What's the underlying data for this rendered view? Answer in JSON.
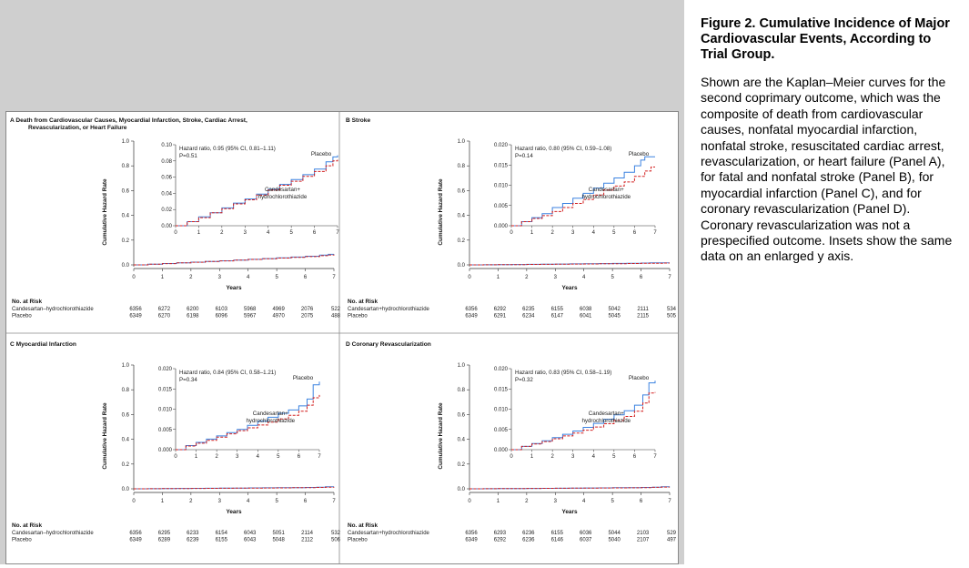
{
  "caption": {
    "title": "Figure 2. Cumulative Incidence of Major Cardiovascular Events, According to Trial Group.",
    "body": "Shown are the Kaplan–Meier curves for the second coprimary outcome, which was the composite of death from cardiovascular causes, nonfatal myocardial infarction, nonfatal stroke, resuscitated cardiac arrest, revascularization, or heart failure (Panel A), for fatal and nonfatal stroke (Panel B), for myocardial infarction (Panel C), and for coronary revascularization (Panel D). Coronary revascularization was not a prespecified outcome. Insets show the same data on an enlarged y axis."
  },
  "colors": {
    "placebo": "#3b82e0",
    "candesartan": "#d32020",
    "axis": "#333333",
    "frame": "#8a8a8a"
  },
  "shared": {
    "ylabel": "Cumulative Hazard Rate",
    "xlabel": "Years",
    "risk_header": "No. at Risk",
    "main_y_ticks": [
      "0.0",
      "0.2",
      "0.4",
      "0.6",
      "0.8",
      "1.0"
    ],
    "x_ticks": [
      "0",
      "1",
      "2",
      "3",
      "4",
      "5",
      "6",
      "7"
    ]
  },
  "chart_data": [
    {
      "panel": "A",
      "type": "line",
      "title_line1": "Death from Cardiovascular Causes, Myocardial Infarction, Stroke, Cardiac Arrest,",
      "title_line2": "Revascularization, or Heart Failure",
      "xlabel": "Years",
      "ylabel": "Cumulative Hazard Rate",
      "xlim": [
        0,
        7
      ],
      "ylim": [
        0,
        1.0
      ],
      "inset": {
        "ylim": [
          0,
          0.1
        ],
        "y_ticks": [
          "0.00",
          "0.02",
          "0.04",
          "0.06",
          "0.08",
          "0.10"
        ],
        "hr_text": "Hazard ratio, 0.95 (95% CI, 0.81–1.11)",
        "p_text": "P=0.51",
        "placebo_label": "Placebo",
        "cand_label_1": "Candesartan+",
        "cand_label_2": "hydrochlorothiazide"
      },
      "series": [
        {
          "name": "Placebo",
          "x": [
            0,
            0.5,
            1,
            1.5,
            2,
            2.5,
            3,
            3.5,
            4,
            4.5,
            5,
            5.5,
            6,
            6.5,
            6.8,
            7.0
          ],
          "y": [
            0,
            0.005,
            0.011,
            0.016,
            0.022,
            0.028,
            0.033,
            0.039,
            0.045,
            0.051,
            0.057,
            0.063,
            0.07,
            0.079,
            0.085,
            0.087
          ]
        },
        {
          "name": "Candesartan+hydrochlorothiazide",
          "x": [
            0,
            0.5,
            1,
            1.5,
            2,
            2.5,
            3,
            3.5,
            4,
            4.5,
            5,
            5.5,
            6,
            6.5,
            6.8,
            7.0
          ],
          "y": [
            0,
            0.005,
            0.01,
            0.016,
            0.021,
            0.027,
            0.032,
            0.038,
            0.044,
            0.05,
            0.055,
            0.061,
            0.067,
            0.074,
            0.08,
            0.082
          ]
        }
      ],
      "risk": {
        "rows": [
          {
            "label": "Candesartan–hydrochlorothiazide",
            "values": [
              "6356",
              "6272",
              "6200",
              "6103",
              "5968",
              "4969",
              "2076",
              "522"
            ]
          },
          {
            "label": "Placebo",
            "values": [
              "6349",
              "6270",
              "6198",
              "6096",
              "5967",
              "4970",
              "2075",
              "488"
            ]
          }
        ]
      }
    },
    {
      "panel": "B",
      "type": "line",
      "title_line1": "Stroke",
      "title_line2": "",
      "xlabel": "Years",
      "ylabel": "Cumulative Hazard Rate",
      "xlim": [
        0,
        7
      ],
      "ylim": [
        0,
        1.0
      ],
      "inset": {
        "ylim": [
          0,
          0.02
        ],
        "y_ticks": [
          "0.000",
          "0.005",
          "0.010",
          "0.015",
          "0.020"
        ],
        "hr_text": "Hazard ratio, 0.80 (95% CI, 0.59–1.08)",
        "p_text": "P=0.14",
        "placebo_label": "Placebo",
        "cand_label_1": "Candesartan+",
        "cand_label_2": "hydrochlorothiazide"
      },
      "series": [
        {
          "name": "Placebo",
          "x": [
            0,
            0.5,
            1,
            1.5,
            2,
            2.5,
            3,
            3.5,
            4,
            4.5,
            5,
            5.5,
            6,
            6.3,
            6.5,
            7.0
          ],
          "y": [
            0,
            0.001,
            0.002,
            0.003,
            0.0045,
            0.0055,
            0.0068,
            0.008,
            0.0093,
            0.0105,
            0.0118,
            0.0132,
            0.0148,
            0.0162,
            0.017,
            0.017
          ]
        },
        {
          "name": "Candesartan+hydrochlorothiazide",
          "x": [
            0,
            0.5,
            1,
            1.5,
            2,
            2.5,
            3,
            3.5,
            4,
            4.5,
            5,
            5.5,
            6,
            6.5,
            6.8,
            7.0
          ],
          "y": [
            0,
            0.001,
            0.0018,
            0.0025,
            0.0035,
            0.0045,
            0.0055,
            0.0065,
            0.0076,
            0.0088,
            0.0098,
            0.0108,
            0.0122,
            0.0135,
            0.0145,
            0.0145
          ]
        }
      ],
      "risk": {
        "rows": [
          {
            "label": "Candesartan+hydrochlorothiazide",
            "values": [
              "6356",
              "6292",
              "6235",
              "6155",
              "6038",
              "5042",
              "2111",
              "534"
            ]
          },
          {
            "label": "Placebo",
            "values": [
              "6349",
              "6291",
              "6234",
              "6147",
              "6041",
              "5045",
              "2115",
              "505"
            ]
          }
        ]
      }
    },
    {
      "panel": "C",
      "type": "line",
      "title_line1": "Myocardial Infarction",
      "title_line2": "",
      "xlabel": "Years",
      "ylabel": "Cumulative Hazard Rate",
      "xlim": [
        0,
        7
      ],
      "ylim": [
        0,
        1.0
      ],
      "inset": {
        "ylim": [
          0,
          0.02
        ],
        "y_ticks": [
          "0.000",
          "0.005",
          "0.010",
          "0.015",
          "0.020"
        ],
        "hr_text": "Hazard ratio, 0.84 (95% CI, 0.58–1.21)",
        "p_text": "P=0.34",
        "placebo_label": "Placebo",
        "cand_label_1": "Candesartan+",
        "cand_label_2": "hydrochlorothiazide"
      },
      "series": [
        {
          "name": "Placebo",
          "x": [
            0,
            0.5,
            1,
            1.5,
            2,
            2.5,
            3,
            3.5,
            4,
            4.5,
            5,
            5.5,
            6,
            6.4,
            6.7,
            7.0
          ],
          "y": [
            0,
            0.001,
            0.0018,
            0.0026,
            0.0034,
            0.0042,
            0.005,
            0.006,
            0.007,
            0.008,
            0.009,
            0.0098,
            0.0108,
            0.0125,
            0.016,
            0.0168
          ]
        },
        {
          "name": "Candesartan+hydrochlorothiazide",
          "x": [
            0,
            0.5,
            1,
            1.5,
            2,
            2.5,
            3,
            3.5,
            4,
            4.5,
            5,
            5.5,
            6,
            6.4,
            6.7,
            7.0
          ],
          "y": [
            0,
            0.0009,
            0.0016,
            0.0023,
            0.0031,
            0.0039,
            0.0047,
            0.0054,
            0.0061,
            0.0068,
            0.0076,
            0.0085,
            0.0095,
            0.011,
            0.0128,
            0.0135
          ]
        }
      ],
      "risk": {
        "rows": [
          {
            "label": "Candesartan–hydrochlorothiazide",
            "values": [
              "6356",
              "6295",
              "6233",
              "6154",
              "6043",
              "5051",
              "2114",
              "532"
            ]
          },
          {
            "label": "Placebo",
            "values": [
              "6349",
              "6289",
              "6239",
              "6155",
              "6043",
              "5048",
              "2112",
              "506"
            ]
          }
        ]
      }
    },
    {
      "panel": "D",
      "type": "line",
      "title_line1": "Coronary Revascularization",
      "title_line2": "",
      "xlabel": "Years",
      "ylabel": "Cumulative Hazard Rate",
      "xlim": [
        0,
        7
      ],
      "ylim": [
        0,
        1.0
      ],
      "inset": {
        "ylim": [
          0,
          0.02
        ],
        "y_ticks": [
          "0.000",
          "0.005",
          "0.010",
          "0.015",
          "0.020"
        ],
        "hr_text": "Hazard ratio, 0.83 (95% CI, 0.58–1.19)",
        "p_text": "P=0.32",
        "placebo_label": "Placebo",
        "cand_label_1": "Candesartan+",
        "cand_label_2": "hydrochlorothiazide"
      },
      "series": [
        {
          "name": "Placebo",
          "x": [
            0,
            0.5,
            1,
            1.5,
            2,
            2.5,
            3,
            3.5,
            4,
            4.5,
            5,
            5.5,
            6,
            6.4,
            6.7,
            7.0
          ],
          "y": [
            0,
            0.0008,
            0.0015,
            0.0022,
            0.003,
            0.0038,
            0.0046,
            0.0055,
            0.0065,
            0.0075,
            0.0086,
            0.0096,
            0.011,
            0.0135,
            0.0165,
            0.017
          ]
        },
        {
          "name": "Candesartan+hydrochlorothiazide",
          "x": [
            0,
            0.5,
            1,
            1.5,
            2,
            2.5,
            3,
            3.5,
            4,
            4.5,
            5,
            5.5,
            6,
            6.4,
            6.7,
            7.0
          ],
          "y": [
            0,
            0.0008,
            0.0014,
            0.002,
            0.0027,
            0.0034,
            0.0041,
            0.0048,
            0.0056,
            0.0064,
            0.0072,
            0.0082,
            0.0095,
            0.0115,
            0.014,
            0.0142
          ]
        }
      ],
      "risk": {
        "rows": [
          {
            "label": "Candesartan+hydrochlorothiazide",
            "values": [
              "6356",
              "6293",
              "6236",
              "6155",
              "6036",
              "5044",
              "2103",
              "529"
            ]
          },
          {
            "label": "Placebo",
            "values": [
              "6349",
              "6292",
              "6236",
              "6146",
              "6037",
              "5040",
              "2107",
              "497"
            ]
          }
        ]
      }
    }
  ]
}
